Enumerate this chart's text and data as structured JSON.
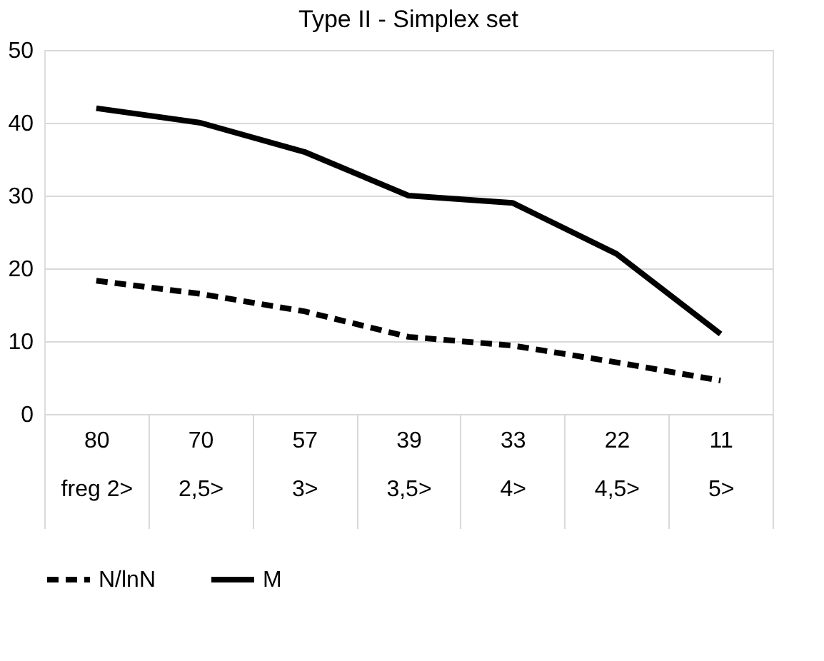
{
  "chart_data": {
    "type": "line",
    "title": "Type II - Simplex set",
    "categories": [
      "80\nfreg 2>",
      "70\n2,5>",
      "57\n3>",
      "39\n3,5>",
      "33\n4>",
      "22\n4,5>",
      "11\n5>"
    ],
    "series": [
      {
        "name": "N/lnN",
        "color": "#000000",
        "line_style": "dashed",
        "values": [
          18.3,
          16.5,
          14.1,
          10.6,
          9.4,
          7.1,
          4.6
        ]
      },
      {
        "name": "M",
        "color": "#000000",
        "line_style": "solid",
        "values": [
          42,
          40,
          36,
          30,
          29,
          22,
          11
        ]
      }
    ],
    "ylim": [
      0,
      50
    ],
    "yticks": [
      0,
      10,
      20,
      30,
      40,
      50
    ],
    "grid": "y",
    "legend": "bottom",
    "marker": "none"
  }
}
